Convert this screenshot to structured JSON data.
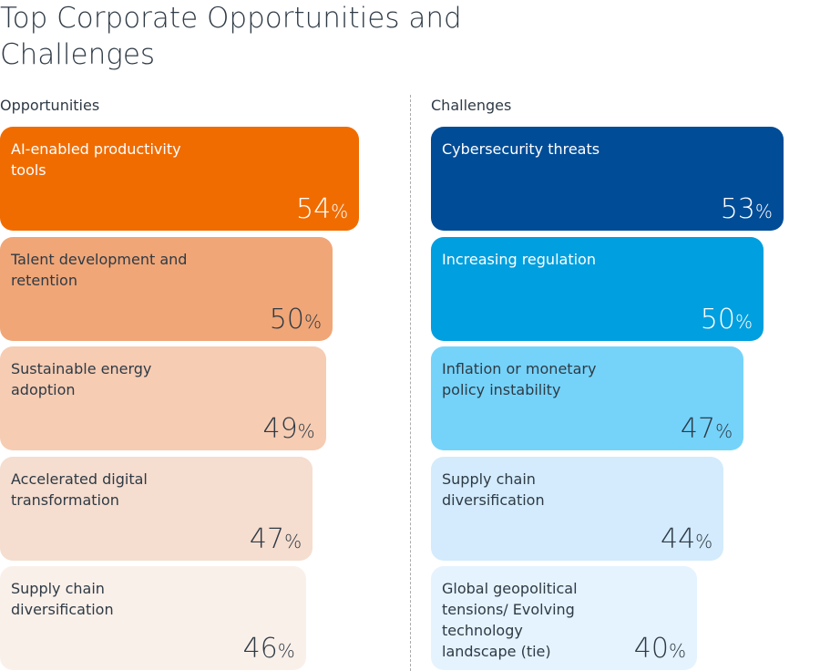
{
  "chart_data": {
    "type": "bar",
    "title": "Top Corporate Opportunities and Challenges",
    "unit": "%",
    "groups": [
      {
        "name": "Opportunities",
        "categories": [
          "AI-enabled productivity tools",
          "Talent development and retention",
          "Sustainable energy adoption",
          "Accelerated digital transformation",
          "Supply chain diversification"
        ],
        "values": [
          54,
          50,
          49,
          47,
          46
        ],
        "colors": [
          "#F06C00",
          "#F0A677",
          "#F6CCB3",
          "#F5DDCF",
          "#FAF0EA"
        ],
        "text_colors": [
          "#ffffff",
          "#2e3a45",
          "#2e3a45",
          "#2e3a45",
          "#2e3a45"
        ]
      },
      {
        "name": "Challenges",
        "categories": [
          "Cybersecurity threats",
          "Increasing regulation",
          "Inflation or monetary policy instability",
          "Supply chain diversification",
          "Global geopolitical tensions/ Evolving technology landscape (tie)"
        ],
        "values": [
          53,
          50,
          47,
          44,
          40
        ],
        "colors": [
          "#004C97",
          "#009FDF",
          "#75D3FA",
          "#D3EBFC",
          "#E5F3FE"
        ],
        "text_colors": [
          "#ffffff",
          "#ffffff",
          "#2e3a45",
          "#2e3a45",
          "#2e3a45"
        ]
      }
    ]
  }
}
